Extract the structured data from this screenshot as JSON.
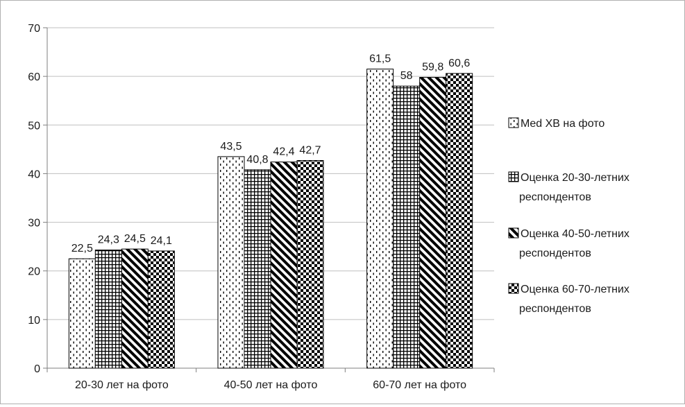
{
  "chart_data": {
    "type": "bar",
    "title": "",
    "xlabel": "",
    "ylabel": "",
    "ylim": [
      0,
      70
    ],
    "yticks": [
      0,
      10,
      20,
      30,
      40,
      50,
      60,
      70
    ],
    "grid": true,
    "legend_position": "right",
    "categories": [
      "20-30 лет на фото",
      "40-50 лет на фото",
      "60-70 лет на фото"
    ],
    "series": [
      {
        "name": "Med XB на фото",
        "values": [
          22.5,
          43.5,
          61.5
        ],
        "labels": [
          "22,5",
          "43,5",
          "61,5"
        ],
        "pattern": "dashes"
      },
      {
        "name": "Оценка 20-30-летних респондентов",
        "values": [
          24.3,
          40.8,
          58
        ],
        "labels": [
          "24,3",
          "40,8",
          "58"
        ],
        "pattern": "grid"
      },
      {
        "name": "Оценка 40-50-летних респондентов",
        "values": [
          24.5,
          42.4,
          59.8
        ],
        "labels": [
          "24,5",
          "42,4",
          "59,8"
        ],
        "pattern": "diagonal"
      },
      {
        "name": "Оценка 60-70-летних респондентов",
        "values": [
          24.1,
          42.7,
          60.6
        ],
        "labels": [
          "24,1",
          "42,7",
          "60,6"
        ],
        "pattern": "checker"
      }
    ],
    "legend_lines": [
      [
        "Med XB на фото"
      ],
      [
        "Оценка 20-30-летних",
        "респондентов"
      ],
      [
        "Оценка 40-50-летних",
        "респондентов"
      ],
      [
        "Оценка 60-70-летних",
        "респондентов"
      ]
    ]
  }
}
